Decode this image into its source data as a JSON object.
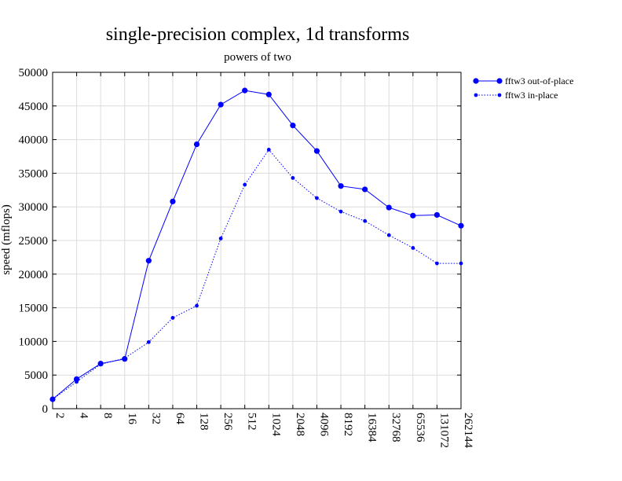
{
  "chart_data": {
    "type": "line",
    "title": "single-precision complex, 1d transforms",
    "subtitle": "powers of two",
    "xlabel": "",
    "ylabel": "speed (mflops)",
    "categories": [
      "2",
      "4",
      "8",
      "16",
      "32",
      "64",
      "128",
      "256",
      "512",
      "1024",
      "2048",
      "4096",
      "8192",
      "16384",
      "32768",
      "65536",
      "131072",
      "262144"
    ],
    "ylim": [
      0,
      50000
    ],
    "yticks": [
      "0",
      "5000",
      "10000",
      "15000",
      "20000",
      "25000",
      "30000",
      "35000",
      "40000",
      "45000",
      "50000"
    ],
    "grid": true,
    "legend_position": "top-right, outside plot",
    "series": [
      {
        "name": "fftw3 out-of-place",
        "color": "#0000ff",
        "line_style": "solid",
        "marker": "large-dot",
        "values": [
          1400,
          4400,
          6700,
          7400,
          22000,
          30800,
          39300,
          45200,
          47300,
          46700,
          42100,
          38300,
          33100,
          32600,
          29900,
          28700,
          28800,
          27200
        ]
      },
      {
        "name": "fftw3 in-place",
        "color": "#0000ff",
        "line_style": "dotted",
        "marker": "small-dot",
        "values": [
          1400,
          4000,
          6600,
          7500,
          9900,
          13500,
          15300,
          25300,
          33300,
          38500,
          34300,
          31300,
          29300,
          27900,
          25800,
          23900,
          21600,
          21600
        ]
      }
    ]
  }
}
